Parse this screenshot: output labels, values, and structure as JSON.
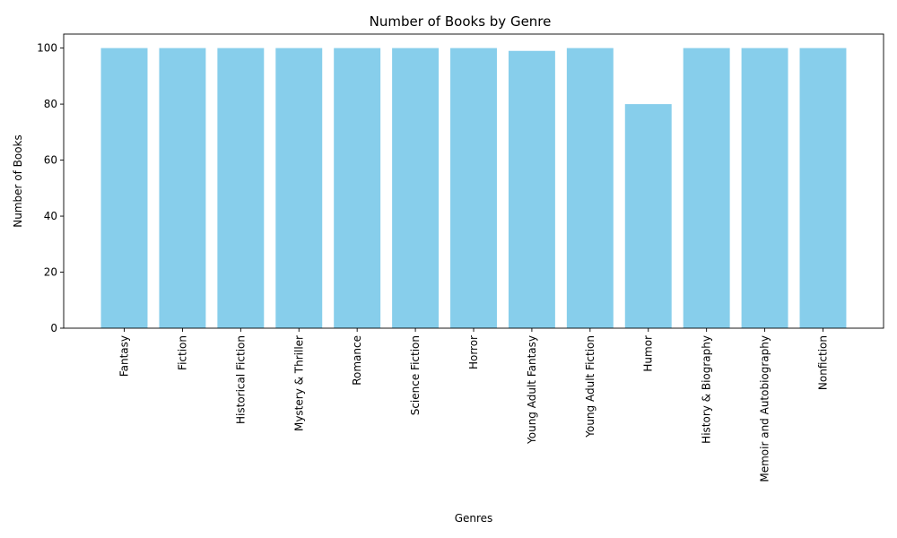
{
  "chart_data": {
    "type": "bar",
    "title": "Number of Books by Genre",
    "xlabel": "Genres",
    "ylabel": "Number of Books",
    "categories": [
      "Fantasy",
      "Fiction",
      "Historical Fiction",
      "Mystery & Thriller",
      "Romance",
      "Science Fiction",
      "Horror",
      "Young Adult Fantasy",
      "Young Adult Fiction",
      "Humor",
      "History & Biography",
      "Memoir and Autobiography",
      "Nonfiction"
    ],
    "values": [
      100,
      100,
      100,
      100,
      100,
      100,
      100,
      99,
      100,
      80,
      100,
      100,
      100
    ],
    "ylim": [
      0,
      105
    ],
    "yticks": [
      0,
      20,
      40,
      60,
      80,
      100
    ],
    "bar_color": "#87CEEB",
    "grid": false,
    "legend": "none"
  }
}
